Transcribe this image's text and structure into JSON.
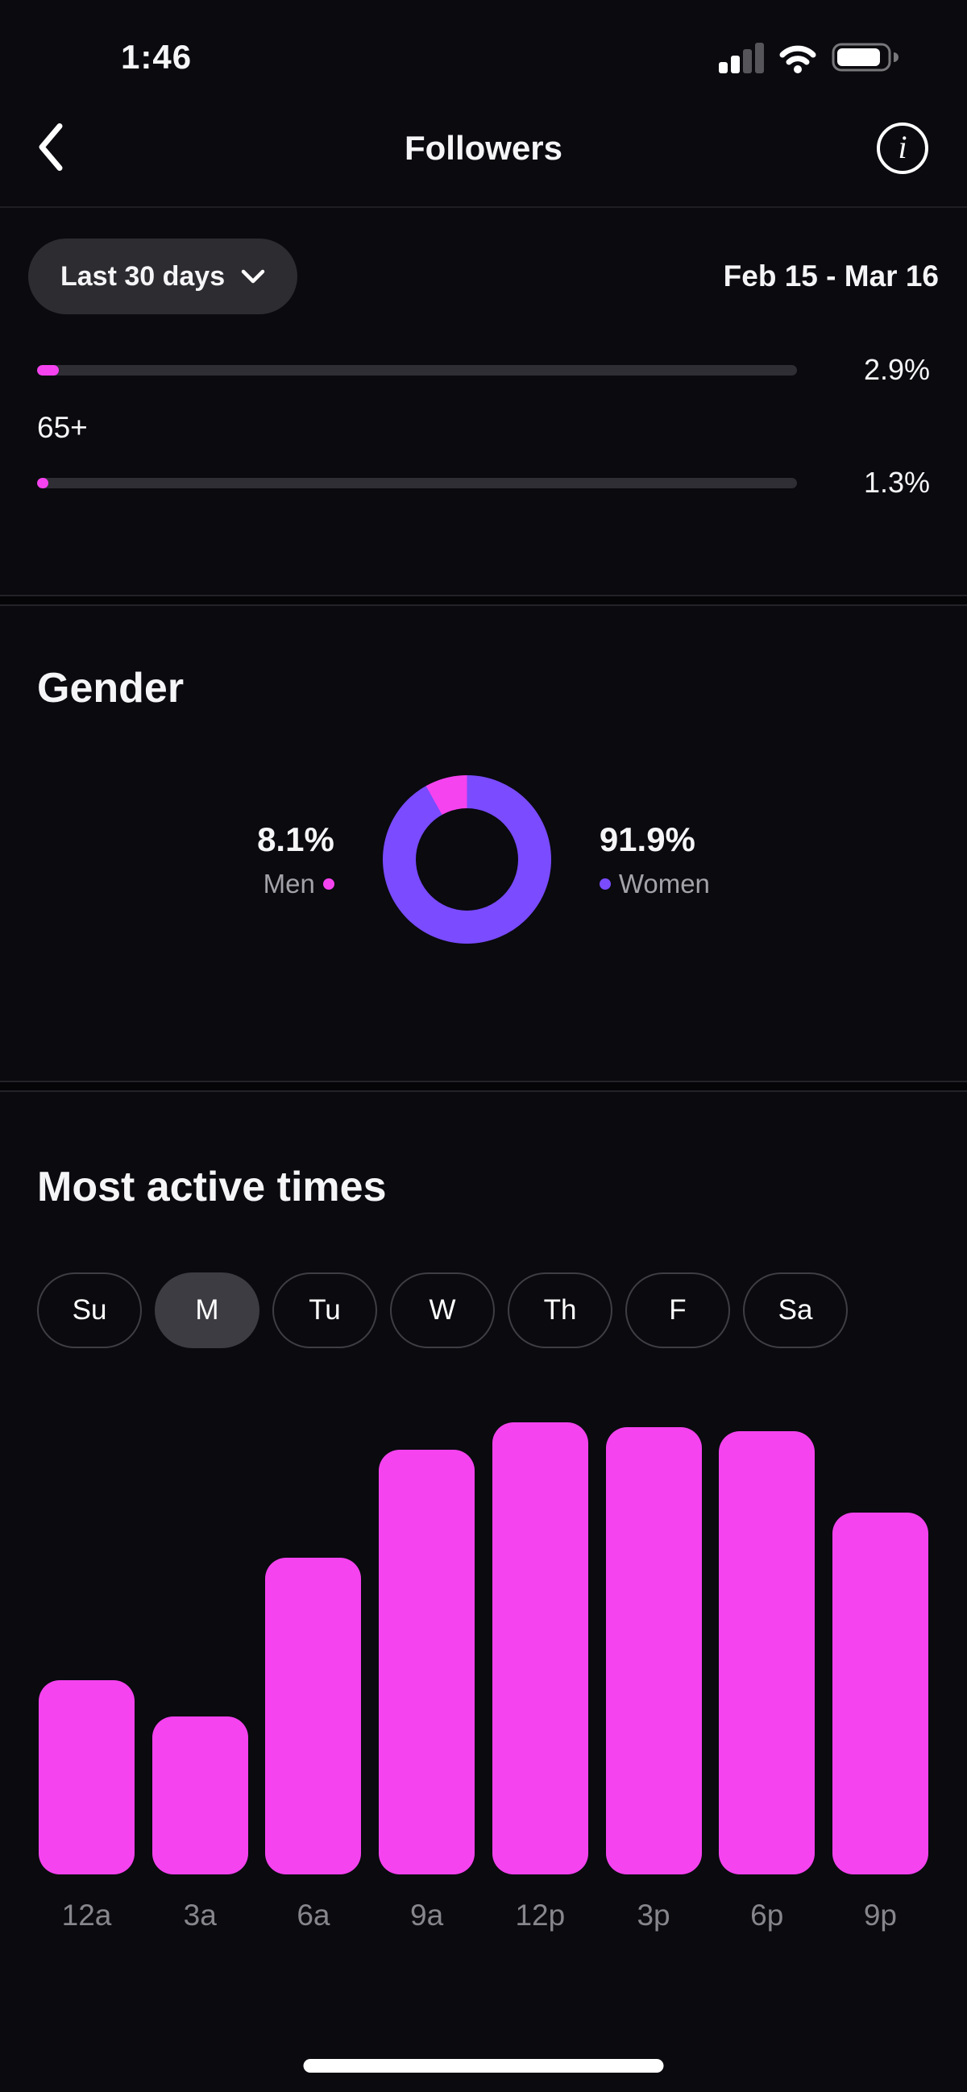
{
  "colors": {
    "background": "#0a0a0f",
    "accent_pink": "#f543ef",
    "accent_purple": "#7a4bff"
  },
  "status_bar": {
    "time": "1:46",
    "icons": [
      "cellular-signal-icon",
      "wifi-icon",
      "battery-icon"
    ]
  },
  "header": {
    "title": "Followers",
    "back_icon": "chevron-left-icon",
    "info_icon": "info-icon"
  },
  "filter": {
    "range_label": "Last 30 days",
    "date_range": "Feb 15 - Mar 16"
  },
  "age": {
    "rows": [
      {
        "label": "",
        "value": "2.9%",
        "pct": 2.9
      },
      {
        "label": "65+",
        "value": "1.3%",
        "pct": 1.3
      }
    ]
  },
  "gender": {
    "title": "Gender",
    "segments": [
      {
        "label": "Men",
        "pct": 8.1,
        "display": "8.1%",
        "color": "#f543ef"
      },
      {
        "label": "Women",
        "pct": 91.9,
        "display": "91.9%",
        "color": "#7a4bff"
      }
    ]
  },
  "active_times": {
    "title": "Most active times",
    "days": [
      "Su",
      "M",
      "Tu",
      "W",
      "Th",
      "F",
      "Sa"
    ],
    "selected_day": "M",
    "categories": [
      "12a",
      "3a",
      "6a",
      "9a",
      "12p",
      "3p",
      "6p",
      "9p"
    ],
    "values": [
      43,
      35,
      70,
      94,
      100,
      99,
      98,
      80
    ]
  },
  "chart_data": [
    {
      "type": "bar",
      "orientation": "horizontal",
      "title": "Follower age ranges (partially scrolled)",
      "categories": [
        "",
        "65+"
      ],
      "values": [
        2.9,
        1.3
      ],
      "value_labels": [
        "2.9%",
        "1.3%"
      ],
      "xlim": [
        0,
        100
      ],
      "bar_color": "#f543ef"
    },
    {
      "type": "pie",
      "donut": true,
      "title": "Gender",
      "labels": [
        "Men",
        "Women"
      ],
      "values": [
        8.1,
        91.9
      ],
      "value_labels": [
        "8.1%",
        "91.9%"
      ],
      "colors": [
        "#f543ef",
        "#7a4bff"
      ],
      "legend_position": "sides"
    },
    {
      "type": "bar",
      "title": "Most active times",
      "subtitle_day": "M",
      "categories": [
        "12a",
        "3a",
        "6a",
        "9a",
        "12p",
        "3p",
        "6p",
        "9p"
      ],
      "values": [
        43,
        35,
        70,
        94,
        100,
        99,
        98,
        80
      ],
      "ylim": [
        0,
        100
      ],
      "grid": false,
      "bar_color": "#f543ef",
      "value_note": "relative activity level estimated from bar heights"
    }
  ]
}
